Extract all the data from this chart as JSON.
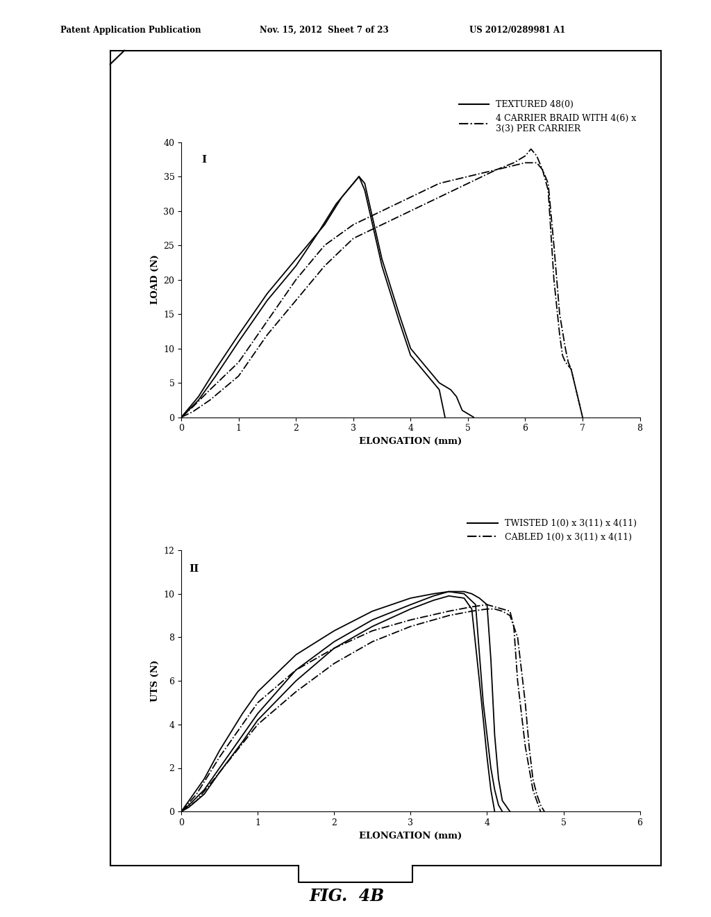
{
  "header_left": "Patent Application Publication",
  "header_mid": "Nov. 15, 2012  Sheet 7 of 23",
  "header_right": "US 2012/0289981 A1",
  "fig_label": "FIG.  4B",
  "plot1": {
    "label": "I",
    "xlabel": "ELONGATION (mm)",
    "ylabel": "LOAD (N)",
    "xlim": [
      0,
      8
    ],
    "ylim": [
      0,
      40
    ],
    "xticks": [
      0,
      1,
      2,
      3,
      4,
      5,
      6,
      7,
      8
    ],
    "yticks": [
      0,
      5,
      10,
      15,
      20,
      25,
      30,
      35,
      40
    ],
    "legend1_label": "TEXTURED 48(0)",
    "legend2_label": "4 CARRIER BRAID WITH 4(6) x\n3(3) PER CARRIER",
    "solid_curves": [
      [
        [
          0,
          0.1,
          0.3,
          0.6,
          1.0,
          1.5,
          2.0,
          2.5,
          2.8,
          3.0,
          3.1,
          3.2,
          3.5,
          3.8,
          4.0,
          4.2,
          4.3,
          4.4,
          4.5,
          4.6,
          4.7,
          4.8,
          4.85,
          4.9,
          5.0,
          5.1
        ],
        [
          0,
          1,
          3,
          7,
          12,
          18,
          23,
          28,
          32,
          34,
          35,
          34,
          23,
          15,
          10,
          8,
          7,
          6,
          5,
          4.5,
          4,
          3,
          2,
          1,
          0.5,
          0
        ]
      ],
      [
        [
          0,
          0.1,
          0.3,
          0.6,
          1.0,
          1.5,
          2.0,
          2.4,
          2.7,
          2.9,
          3.0,
          3.1,
          3.2,
          3.5,
          3.8,
          4.0,
          4.2,
          4.3,
          4.4,
          4.5,
          4.55,
          4.6
        ],
        [
          0,
          0.8,
          2.5,
          6,
          11,
          17,
          22,
          27,
          31,
          33,
          34,
          35,
          33,
          22,
          14,
          9,
          7,
          6,
          5,
          4,
          2,
          0
        ]
      ]
    ],
    "dashdot_curves": [
      [
        [
          0,
          0.2,
          0.5,
          1.0,
          1.5,
          2.0,
          2.5,
          3.0,
          3.5,
          4.0,
          4.5,
          5.0,
          5.5,
          5.8,
          6.0,
          6.1,
          6.2,
          6.3,
          6.4,
          6.5,
          6.6,
          6.65,
          6.7,
          6.8,
          7.0
        ],
        [
          0,
          1.5,
          4,
          8,
          14,
          20,
          25,
          28,
          30,
          32,
          34,
          35,
          36,
          37,
          38,
          39,
          38,
          36,
          33,
          20,
          12,
          9,
          8,
          7,
          0
        ]
      ],
      [
        [
          0,
          0.2,
          0.5,
          1.0,
          1.5,
          2.0,
          2.5,
          3.0,
          3.5,
          4.0,
          4.5,
          5.0,
          5.5,
          6.0,
          6.2,
          6.3,
          6.4,
          6.5,
          6.6,
          6.7,
          6.75,
          6.8,
          7.0
        ],
        [
          0,
          0.8,
          2.5,
          6,
          12,
          17,
          22,
          26,
          28,
          30,
          32,
          34,
          36,
          37,
          37,
          36,
          34,
          25,
          15,
          10,
          8,
          7,
          0
        ]
      ]
    ]
  },
  "plot2": {
    "label": "II",
    "xlabel": "ELONGATION (mm)",
    "ylabel": "UTS (N)",
    "xlim": [
      0,
      6
    ],
    "ylim": [
      0,
      12
    ],
    "xticks": [
      0,
      1,
      2,
      3,
      4,
      5,
      6
    ],
    "yticks": [
      0,
      2,
      4,
      6,
      8,
      10,
      12
    ],
    "legend1_label": "TWISTED 1(0) x 3(11) x 4(11)",
    "legend2_label": "CABLED 1(0) x 3(11) x 4(11)",
    "solid_curves": [
      [
        [
          0,
          0.1,
          0.3,
          0.5,
          0.8,
          1.0,
          1.5,
          2.0,
          2.5,
          3.0,
          3.3,
          3.5,
          3.7,
          3.8,
          3.9,
          4.0,
          4.05,
          4.1,
          4.15,
          4.2,
          4.3
        ],
        [
          0,
          0.3,
          1.0,
          2.0,
          3.5,
          4.5,
          6.5,
          7.8,
          8.8,
          9.5,
          9.9,
          10.1,
          10.1,
          10.0,
          9.8,
          9.5,
          7.0,
          3.5,
          1.5,
          0.5,
          0
        ]
      ],
      [
        [
          0,
          0.1,
          0.3,
          0.5,
          0.8,
          1.0,
          1.5,
          2.0,
          2.5,
          3.0,
          3.3,
          3.5,
          3.7,
          3.85,
          3.95,
          4.05,
          4.1,
          4.15,
          4.2
        ],
        [
          0,
          0.5,
          1.5,
          2.8,
          4.5,
          5.5,
          7.2,
          8.3,
          9.2,
          9.8,
          10.0,
          10.1,
          10.0,
          9.5,
          5.0,
          2.0,
          1.0,
          0.3,
          0
        ]
      ],
      [
        [
          0,
          0.1,
          0.3,
          0.5,
          0.8,
          1.0,
          1.5,
          2.0,
          2.5,
          3.0,
          3.3,
          3.5,
          3.7,
          3.8,
          3.9,
          4.0,
          4.05,
          4.1
        ],
        [
          0,
          0.2,
          0.8,
          1.8,
          3.2,
          4.2,
          6.0,
          7.5,
          8.5,
          9.3,
          9.7,
          9.9,
          9.8,
          9.3,
          6.0,
          2.5,
          1.0,
          0
        ]
      ]
    ],
    "dashdot_curves": [
      [
        [
          0,
          0.2,
          0.5,
          1.0,
          1.5,
          2.0,
          2.5,
          3.0,
          3.5,
          3.8,
          4.0,
          4.1,
          4.2,
          4.3,
          4.35,
          4.4,
          4.5,
          4.55,
          4.6,
          4.65,
          4.7
        ],
        [
          0,
          0.8,
          2.5,
          5.0,
          6.5,
          7.5,
          8.3,
          8.8,
          9.2,
          9.4,
          9.5,
          9.4,
          9.3,
          9.2,
          8.5,
          6.0,
          3.0,
          2.0,
          1.0,
          0.5,
          0
        ]
      ],
      [
        [
          0,
          0.2,
          0.5,
          1.0,
          1.5,
          2.0,
          2.5,
          3.0,
          3.5,
          3.8,
          4.0,
          4.1,
          4.2,
          4.3,
          4.4,
          4.5,
          4.55,
          4.6,
          4.65,
          4.7,
          4.75
        ],
        [
          0,
          0.5,
          1.8,
          4.0,
          5.5,
          6.8,
          7.8,
          8.5,
          9.0,
          9.2,
          9.3,
          9.3,
          9.2,
          9.0,
          8.0,
          5.0,
          3.0,
          1.5,
          0.8,
          0.3,
          0
        ]
      ]
    ]
  },
  "border_color": "#000000",
  "background_color": "#ffffff",
  "line_color": "#000000"
}
